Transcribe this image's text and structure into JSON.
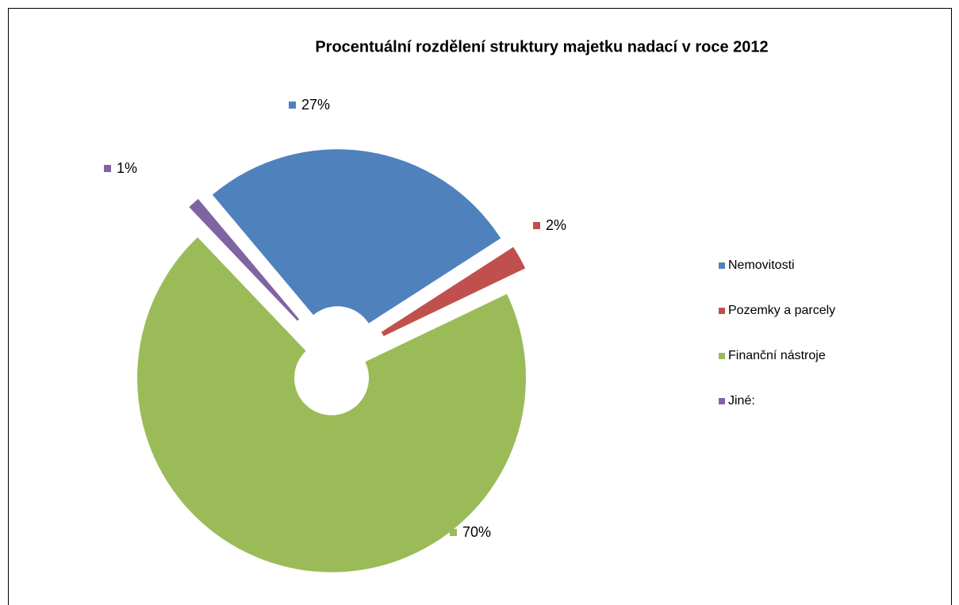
{
  "chart_data": {
    "type": "doughnut",
    "title": "Procentuální rozdělení struktury majetku nadací v roce 2012",
    "categories": [
      "Nemovitosti",
      "Pozemky a parcely",
      "Finanční nástroje",
      "Jiné:"
    ],
    "values": [
      27,
      2,
      70,
      1
    ],
    "value_labels": [
      "27%",
      "2%",
      "70%",
      "1%"
    ],
    "colors": [
      "#4f81bd",
      "#c0504d",
      "#9bbb59",
      "#8064a2"
    ],
    "legend": "right"
  }
}
